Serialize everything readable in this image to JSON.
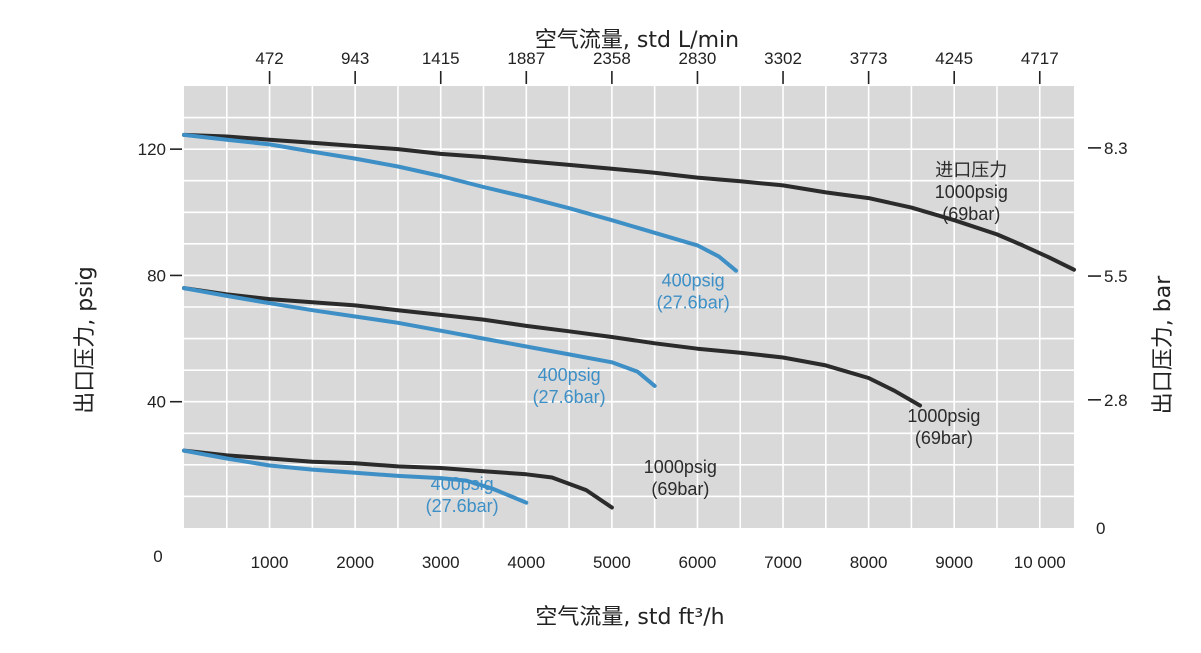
{
  "colors": {
    "plot_background": "#d9d9d9",
    "grid": "#ffffff",
    "series_1000psig": "#2b2b2b",
    "series_400psig": "#3d8fc6",
    "text": "#222222"
  },
  "chart_data": {
    "type": "line",
    "title": "",
    "top_axis_label": "空气流量, std L/min",
    "xlabel": "空气流量, std ft³/h",
    "ylabel_left": "出口压力, psig",
    "ylabel_right": "出口压力, bar",
    "xlim": [
      0,
      10400
    ],
    "ylim": [
      0,
      140
    ],
    "grid": true,
    "x_ticks": [
      1000,
      2000,
      3000,
      4000,
      5000,
      6000,
      7000,
      8000,
      9000,
      10000
    ],
    "x_tick_labels": [
      "1000",
      "2000",
      "3000",
      "4000",
      "5000",
      "6000",
      "7000",
      "8000",
      "9000",
      "10 000"
    ],
    "x_zero_label": "0",
    "top_ticks": [
      {
        "x": 1000,
        "label": "472"
      },
      {
        "x": 2000,
        "label": "943"
      },
      {
        "x": 3000,
        "label": "1415"
      },
      {
        "x": 4000,
        "label": "1887"
      },
      {
        "x": 5000,
        "label": "2358"
      },
      {
        "x": 6000,
        "label": "2830"
      },
      {
        "x": 7000,
        "label": "3302"
      },
      {
        "x": 8000,
        "label": "3773"
      },
      {
        "x": 9000,
        "label": "4245"
      },
      {
        "x": 10000,
        "label": "4717"
      }
    ],
    "y_left_ticks": [
      {
        "y": 40,
        "label": "40"
      },
      {
        "y": 80,
        "label": "80"
      },
      {
        "y": 120,
        "label": "120"
      }
    ],
    "y_right_ticks": [
      {
        "y": 0,
        "label": "0",
        "tick": false
      },
      {
        "y": 40.6,
        "label": "2.8",
        "tick": true
      },
      {
        "y": 79.8,
        "label": "5.5",
        "tick": true
      },
      {
        "y": 120.4,
        "label": "8.3",
        "tick": true
      }
    ],
    "series": [
      {
        "color_key": "series_1000psig",
        "label_lines": [
          "进口压力",
          "1000psig",
          "(69bar)"
        ],
        "label_pos": {
          "x": 9200,
          "y": 111.5
        },
        "points": [
          [
            0,
            124.5
          ],
          [
            500,
            124
          ],
          [
            1000,
            123
          ],
          [
            1500,
            122
          ],
          [
            2000,
            121
          ],
          [
            2500,
            120
          ],
          [
            3000,
            118.5
          ],
          [
            3500,
            117.5
          ],
          [
            4000,
            116.2
          ],
          [
            4500,
            115
          ],
          [
            5000,
            113.8
          ],
          [
            5500,
            112.5
          ],
          [
            6000,
            111
          ],
          [
            6500,
            109.8
          ],
          [
            7000,
            108.5
          ],
          [
            7500,
            106.3
          ],
          [
            8000,
            104.5
          ],
          [
            8500,
            101.5
          ],
          [
            9000,
            97.5
          ],
          [
            9500,
            93
          ],
          [
            9800,
            89.5
          ],
          [
            10100,
            85.8
          ],
          [
            10400,
            81.8
          ]
        ]
      },
      {
        "color_key": "series_400psig",
        "label_lines": [
          "400psig",
          "(27.6bar)"
        ],
        "label_pos": {
          "x": 5950,
          "y": 76.5
        },
        "points": [
          [
            0,
            124.5
          ],
          [
            500,
            123
          ],
          [
            1000,
            121.5
          ],
          [
            1500,
            119.2
          ],
          [
            2000,
            117
          ],
          [
            2500,
            114.5
          ],
          [
            3000,
            111.5
          ],
          [
            3500,
            108
          ],
          [
            4000,
            104.8
          ],
          [
            4500,
            101.3
          ],
          [
            5000,
            97.5
          ],
          [
            5500,
            93.5
          ],
          [
            6000,
            89.5
          ],
          [
            6250,
            86
          ],
          [
            6450,
            81.5
          ]
        ]
      },
      {
        "color_key": "series_1000psig",
        "label_lines": [
          "1000psig",
          "(69bar)"
        ],
        "label_pos": {
          "x": 8880,
          "y": 33.5
        },
        "points": [
          [
            0,
            76
          ],
          [
            500,
            74
          ],
          [
            1000,
            72.5
          ],
          [
            1500,
            71.5
          ],
          [
            2000,
            70.5
          ],
          [
            2500,
            69
          ],
          [
            3000,
            67.5
          ],
          [
            3500,
            66
          ],
          [
            4000,
            64
          ],
          [
            4500,
            62.3
          ],
          [
            5000,
            60.5
          ],
          [
            5500,
            58.5
          ],
          [
            6000,
            56.8
          ],
          [
            6500,
            55.5
          ],
          [
            7000,
            54
          ],
          [
            7500,
            51.5
          ],
          [
            8000,
            47.5
          ],
          [
            8300,
            43.5
          ],
          [
            8600,
            38.8
          ]
        ]
      },
      {
        "color_key": "series_400psig",
        "label_lines": [
          "400psig",
          "(27.6bar)"
        ],
        "label_pos": {
          "x": 4500,
          "y": 46.5
        },
        "points": [
          [
            0,
            76
          ],
          [
            500,
            73.5
          ],
          [
            1000,
            71.2
          ],
          [
            1500,
            69
          ],
          [
            2000,
            67
          ],
          [
            2500,
            65
          ],
          [
            3000,
            62.5
          ],
          [
            3500,
            60
          ],
          [
            4000,
            57.5
          ],
          [
            4500,
            55
          ],
          [
            5000,
            52.5
          ],
          [
            5300,
            49.5
          ],
          [
            5500,
            45
          ]
        ]
      },
      {
        "color_key": "series_1000psig",
        "label_lines": [
          "1000psig",
          "(69bar)"
        ],
        "label_pos": {
          "x": 5800,
          "y": 17.5
        },
        "points": [
          [
            0,
            24.5
          ],
          [
            500,
            23
          ],
          [
            1000,
            22
          ],
          [
            1500,
            21
          ],
          [
            2000,
            20.5
          ],
          [
            2500,
            19.5
          ],
          [
            3000,
            19
          ],
          [
            3500,
            18
          ],
          [
            4000,
            17
          ],
          [
            4300,
            16
          ],
          [
            4700,
            12
          ],
          [
            5000,
            6.5
          ]
        ]
      },
      {
        "color_key": "series_400psig",
        "label_lines": [
          "400psig",
          "(27.6bar)"
        ],
        "label_pos": {
          "x": 3250,
          "y": 12
        },
        "points": [
          [
            0,
            24.5
          ],
          [
            500,
            22
          ],
          [
            1000,
            19.8
          ],
          [
            1500,
            18.5
          ],
          [
            2000,
            17.5
          ],
          [
            2500,
            16.5
          ],
          [
            3000,
            15.8
          ],
          [
            3300,
            15
          ],
          [
            3600,
            12.5
          ],
          [
            4000,
            8
          ]
        ]
      }
    ]
  }
}
